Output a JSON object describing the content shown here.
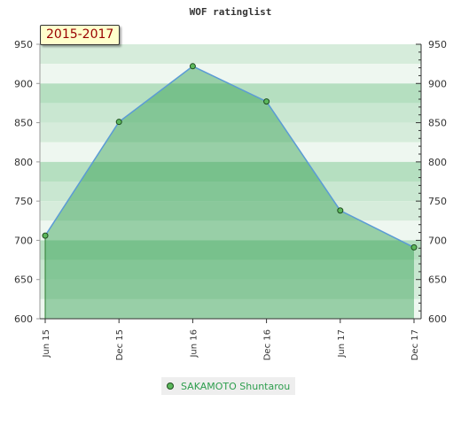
{
  "chart_data": {
    "type": "area",
    "title": "WOF ratinglist",
    "period_label": "2015-2017",
    "x": [
      "Jun 15",
      "Dec 15",
      "Jun 16",
      "Dec 16",
      "Jun 17",
      "Dec 17"
    ],
    "series": [
      {
        "name": "SAKAMOTO Shuntarou",
        "values": [
          706,
          851,
          922,
          877,
          738,
          691
        ]
      }
    ],
    "ylim": [
      600,
      950
    ],
    "y_ticks": [
      600,
      650,
      700,
      750,
      800,
      850,
      900,
      950
    ],
    "axis_left": true,
    "axis_right": true,
    "legend_position": "bottom-center",
    "colors": {
      "line": "#5b9bd5",
      "fill": "#2e9e4e",
      "marker": "#5cb85c"
    }
  }
}
